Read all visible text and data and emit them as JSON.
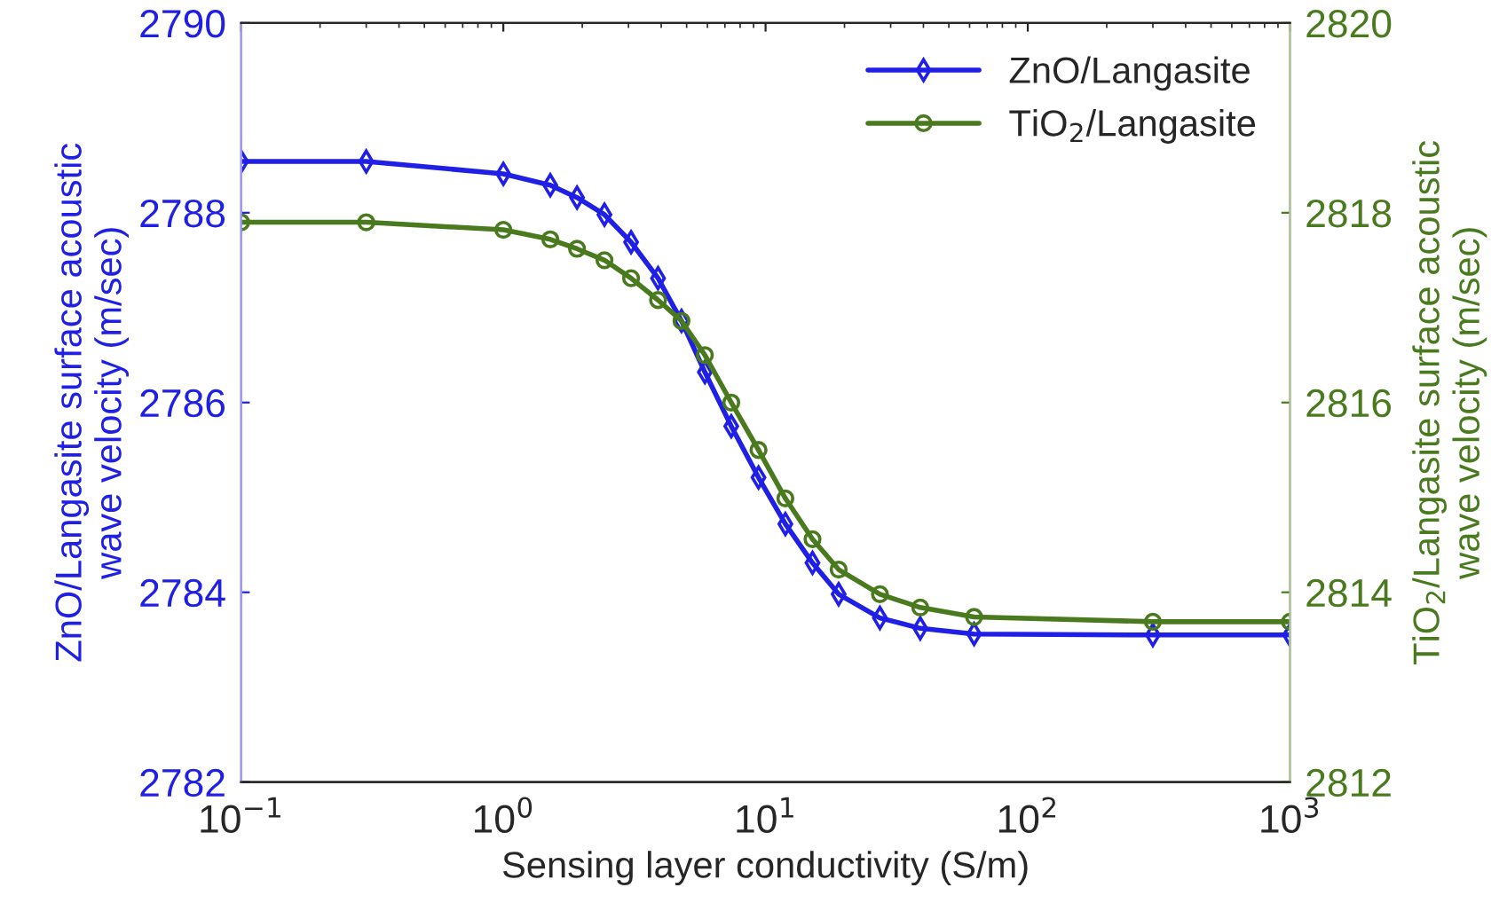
{
  "chart_data": {
    "type": "line",
    "xlabel": "Sensing layer conductivity (S/m)",
    "ylabel": "ZnO/Langasite surface acoustic wave velocity (m/sec)",
    "y2label": "TiO$_{2}$/Langasite surface acoustic wave velocity (m/sec)",
    "log": "x",
    "xlim": [
      0.1,
      1000
    ],
    "xticks": [
      {
        "value": 0.1,
        "label": "10$^{−1}$"
      },
      {
        "value": 1,
        "label": "10$^{0}$"
      },
      {
        "value": 10,
        "label": "10$^{1}$"
      },
      {
        "value": 100,
        "label": "10$^{2}$"
      },
      {
        "value": 1000,
        "label": "10$^{3}$"
      }
    ],
    "ylim": [
      2782,
      2790
    ],
    "yticks": [
      2782,
      2784,
      2786,
      2788,
      2790
    ],
    "y2lim": [
      2812,
      2820
    ],
    "y2ticks": [
      2812,
      2814,
      2816,
      2818,
      2820
    ],
    "grid": false,
    "legend": "top right",
    "line_style": "solid",
    "x": [
      0.1,
      0.3,
      1,
      1.51,
      1.91,
      2.43,
      3.07,
      3.89,
      4.78,
      5.87,
      7.4,
      9.4,
      11.9,
      15.1,
      19.0,
      27.3,
      38.9,
      62.4,
      300,
      1000
    ],
    "series": [
      {
        "name": "ZnO/Langasite",
        "color": "#1f1fe6",
        "marker": "diamond",
        "values": [
          2788.54,
          2788.54,
          2788.41,
          2788.29,
          2788.16,
          2787.98,
          2787.69,
          2787.31,
          2786.86,
          2786.32,
          2785.75,
          2785.21,
          2784.72,
          2784.31,
          2783.98,
          2783.73,
          2783.62,
          2783.56,
          2783.55,
          2783.55
        ]
      },
      {
        "name": "TiO$_{2}$/Langasite",
        "color": "#4a7a1e",
        "marker": "circle",
        "axis": "y2",
        "values": [
          2817.9,
          2817.9,
          2817.82,
          2817.72,
          2817.62,
          2817.5,
          2817.31,
          2817.08,
          2816.86,
          2816.5,
          2816.0,
          2815.5,
          2814.99,
          2814.56,
          2814.24,
          2813.98,
          2813.84,
          2813.74,
          2813.69,
          2813.69
        ]
      }
    ]
  }
}
